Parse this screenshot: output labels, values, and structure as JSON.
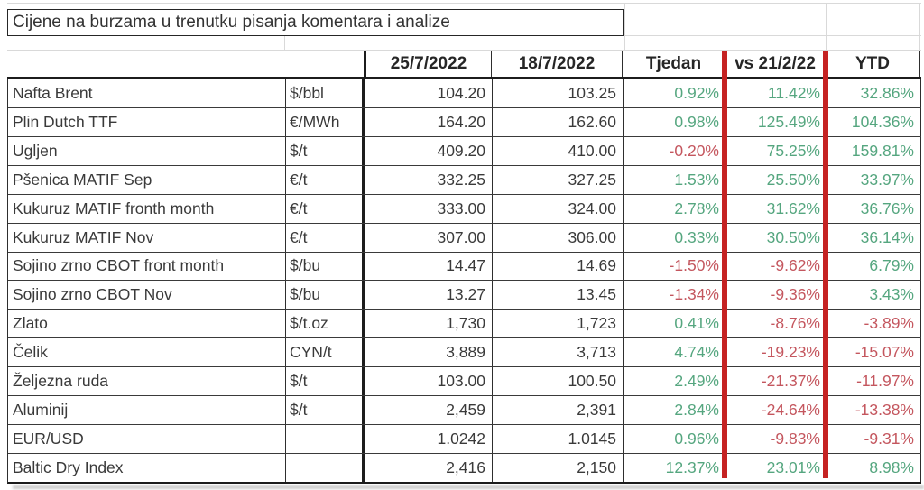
{
  "title": "Cijene na burzama u trenutku pisanja komentara i analize",
  "table": {
    "column_headers": [
      "25/7/2022",
      "18/7/2022",
      "Tjedan",
      "vs 21/2/22",
      "YTD"
    ],
    "rows": [
      {
        "name": "Nafta Brent",
        "unit": "$/bbl",
        "price_25_7": "104.20",
        "price_18_7": "103.25",
        "tjedan": "0.92%",
        "vs_21_2": "11.42%",
        "ytd": "32.86%"
      },
      {
        "name": "Plin Dutch TTF",
        "unit": "€/MWh",
        "price_25_7": "164.20",
        "price_18_7": "162.60",
        "tjedan": "0.98%",
        "vs_21_2": "125.49%",
        "ytd": "104.36%"
      },
      {
        "name": "Ugljen",
        "unit": "$/t",
        "price_25_7": "409.20",
        "price_18_7": "410.00",
        "tjedan": "-0.20%",
        "vs_21_2": "75.25%",
        "ytd": "159.81%"
      },
      {
        "name": "Pšenica MATIF Sep",
        "unit": "€/t",
        "price_25_7": "332.25",
        "price_18_7": "327.25",
        "tjedan": "1.53%",
        "vs_21_2": "25.50%",
        "ytd": "33.97%"
      },
      {
        "name": "Kukuruz MATIF fronth month",
        "unit": "€/t",
        "price_25_7": "333.00",
        "price_18_7": "324.00",
        "tjedan": "2.78%",
        "vs_21_2": "31.62%",
        "ytd": "36.76%"
      },
      {
        "name": "Kukuruz MATIF Nov",
        "unit": "€/t",
        "price_25_7": "307.00",
        "price_18_7": "306.00",
        "tjedan": "0.33%",
        "vs_21_2": "30.50%",
        "ytd": "36.14%"
      },
      {
        "name": "Sojino zrno CBOT front month",
        "unit": "$/bu",
        "price_25_7": "14.47",
        "price_18_7": "14.69",
        "tjedan": "-1.50%",
        "vs_21_2": "-9.62%",
        "ytd": "6.79%"
      },
      {
        "name": "Sojino zrno CBOT Nov",
        "unit": "$/bu",
        "price_25_7": "13.27",
        "price_18_7": "13.45",
        "tjedan": "-1.34%",
        "vs_21_2": "-9.36%",
        "ytd": "3.43%"
      },
      {
        "name": "Zlato",
        "unit": "$/t.oz",
        "price_25_7": "1,730",
        "price_18_7": "1,723",
        "tjedan": "0.41%",
        "vs_21_2": "-8.76%",
        "ytd": "-3.89%"
      },
      {
        "name": "Čelik",
        "unit": "CYN/t",
        "price_25_7": "3,889",
        "price_18_7": "3,713",
        "tjedan": "4.74%",
        "vs_21_2": "-19.23%",
        "ytd": "-15.07%"
      },
      {
        "name": "Željezna ruda",
        "unit": "$/t",
        "price_25_7": "103.00",
        "price_18_7": "100.50",
        "tjedan": "2.49%",
        "vs_21_2": "-21.37%",
        "ytd": "-11.97%"
      },
      {
        "name": "Aluminij",
        "unit": "$/t",
        "price_25_7": "2,459",
        "price_18_7": "2,391",
        "tjedan": "2.84%",
        "vs_21_2": "-24.64%",
        "ytd": "-13.38%"
      },
      {
        "name": "EUR/USD",
        "unit": "",
        "price_25_7": "1.0242",
        "price_18_7": "1.0145",
        "tjedan": "0.96%",
        "vs_21_2": "-9.83%",
        "ytd": "-9.31%"
      },
      {
        "name": "Baltic Dry Index",
        "unit": "",
        "price_25_7": "2,416",
        "price_18_7": "2,150",
        "tjedan": "12.37%",
        "vs_21_2": "23.01%",
        "ytd": "8.98%"
      }
    ]
  },
  "colors": {
    "positive": "#55a67f",
    "negative": "#c4565e",
    "separator_red": "#c52222"
  }
}
